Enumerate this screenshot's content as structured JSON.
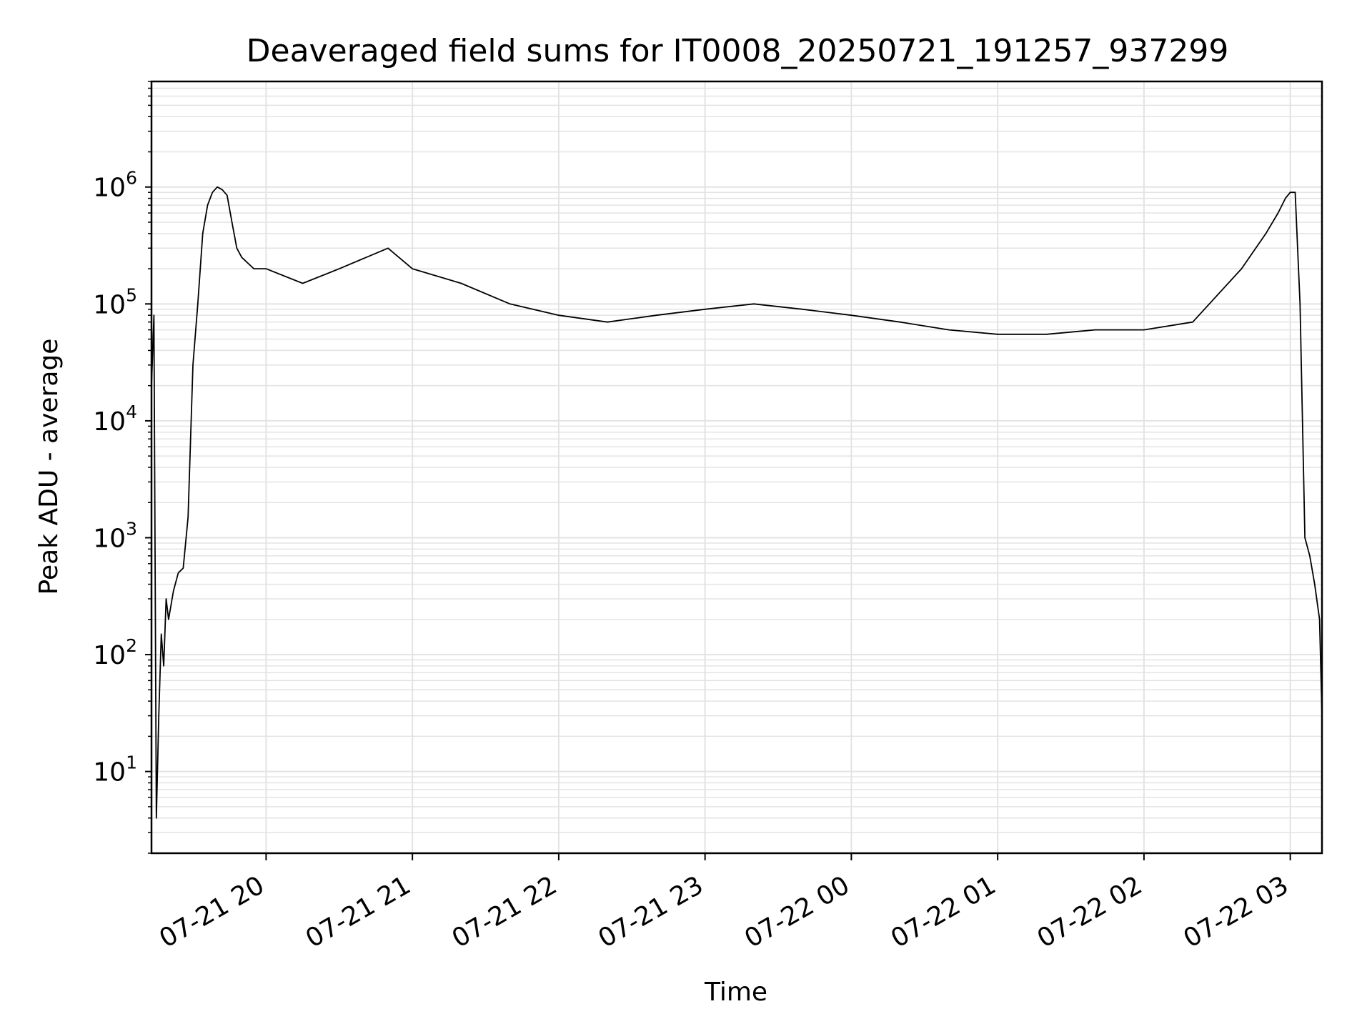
{
  "chart_data": {
    "type": "line",
    "title": "Deaveraged field sums for IT0008_20250721_191257_937299",
    "xlabel": "Time",
    "ylabel": "Peak ADU - average",
    "y_scale": "log",
    "ylim": [
      2,
      8000000
    ],
    "xlim": [
      "2025-07-21 19:13",
      "2025-07-22 03:13"
    ],
    "grid": true,
    "line_color": "#000000",
    "grid_color": "#e3e3e3",
    "x_ticks": [
      {
        "value": "2025-07-21 20:00",
        "label": "07-21 20"
      },
      {
        "value": "2025-07-21 21:00",
        "label": "07-21 21"
      },
      {
        "value": "2025-07-21 22:00",
        "label": "07-21 22"
      },
      {
        "value": "2025-07-21 23:00",
        "label": "07-21 23"
      },
      {
        "value": "2025-07-22 00:00",
        "label": "07-22 00"
      },
      {
        "value": "2025-07-22 01:00",
        "label": "07-22 01"
      },
      {
        "value": "2025-07-22 02:00",
        "label": "07-22 02"
      },
      {
        "value": "2025-07-22 03:00",
        "label": "07-22 03"
      }
    ],
    "y_ticks": [
      {
        "value": 10,
        "base": "10",
        "exp": "1"
      },
      {
        "value": 100,
        "base": "10",
        "exp": "2"
      },
      {
        "value": 1000,
        "base": "10",
        "exp": "3"
      },
      {
        "value": 10000,
        "base": "10",
        "exp": "4"
      },
      {
        "value": 100000,
        "base": "10",
        "exp": "5"
      },
      {
        "value": 1000000,
        "base": "10",
        "exp": "6"
      }
    ],
    "series": [
      {
        "x": [
          "2025-07-21 19:13",
          "2025-07-21 19:14",
          "2025-07-21 19:15",
          "2025-07-21 19:16",
          "2025-07-21 19:17",
          "2025-07-21 19:18",
          "2025-07-21 19:19",
          "2025-07-21 19:20",
          "2025-07-21 19:22",
          "2025-07-21 19:24",
          "2025-07-21 19:26",
          "2025-07-21 19:28",
          "2025-07-21 19:30",
          "2025-07-21 19:32",
          "2025-07-21 19:34",
          "2025-07-21 19:36",
          "2025-07-21 19:38",
          "2025-07-21 19:40",
          "2025-07-21 19:42",
          "2025-07-21 19:44",
          "2025-07-21 19:46",
          "2025-07-21 19:48",
          "2025-07-21 19:50",
          "2025-07-21 19:55",
          "2025-07-21 20:00",
          "2025-07-21 20:15",
          "2025-07-21 20:30",
          "2025-07-21 20:50",
          "2025-07-21 21:00",
          "2025-07-21 21:20",
          "2025-07-21 21:40",
          "2025-07-21 22:00",
          "2025-07-21 22:20",
          "2025-07-21 22:40",
          "2025-07-21 23:00",
          "2025-07-21 23:20",
          "2025-07-21 23:40",
          "2025-07-22 00:00",
          "2025-07-22 00:20",
          "2025-07-22 00:40",
          "2025-07-22 01:00",
          "2025-07-22 01:20",
          "2025-07-22 01:40",
          "2025-07-22 02:00",
          "2025-07-22 02:20",
          "2025-07-22 02:40",
          "2025-07-22 02:50",
          "2025-07-22 02:55",
          "2025-07-22 02:58",
          "2025-07-22 03:00",
          "2025-07-22 03:02",
          "2025-07-22 03:04",
          "2025-07-22 03:06",
          "2025-07-22 03:08",
          "2025-07-22 03:10",
          "2025-07-22 03:12",
          "2025-07-22 03:13"
        ],
        "y": [
          20000,
          80000,
          4,
          30,
          150,
          80,
          300,
          200,
          350,
          500,
          550,
          1500,
          30000,
          100000,
          400000,
          700000,
          900000,
          1000000,
          950000,
          850000,
          500000,
          300000,
          250000,
          200000,
          200000,
          150000,
          200000,
          300000,
          200000,
          150000,
          100000,
          80000,
          70000,
          80000,
          90000,
          100000,
          90000,
          80000,
          70000,
          60000,
          55000,
          55000,
          60000,
          60000,
          70000,
          200000,
          400000,
          600000,
          800000,
          900000,
          900000,
          100000,
          1000,
          700,
          400,
          200,
          30
        ]
      }
    ]
  }
}
